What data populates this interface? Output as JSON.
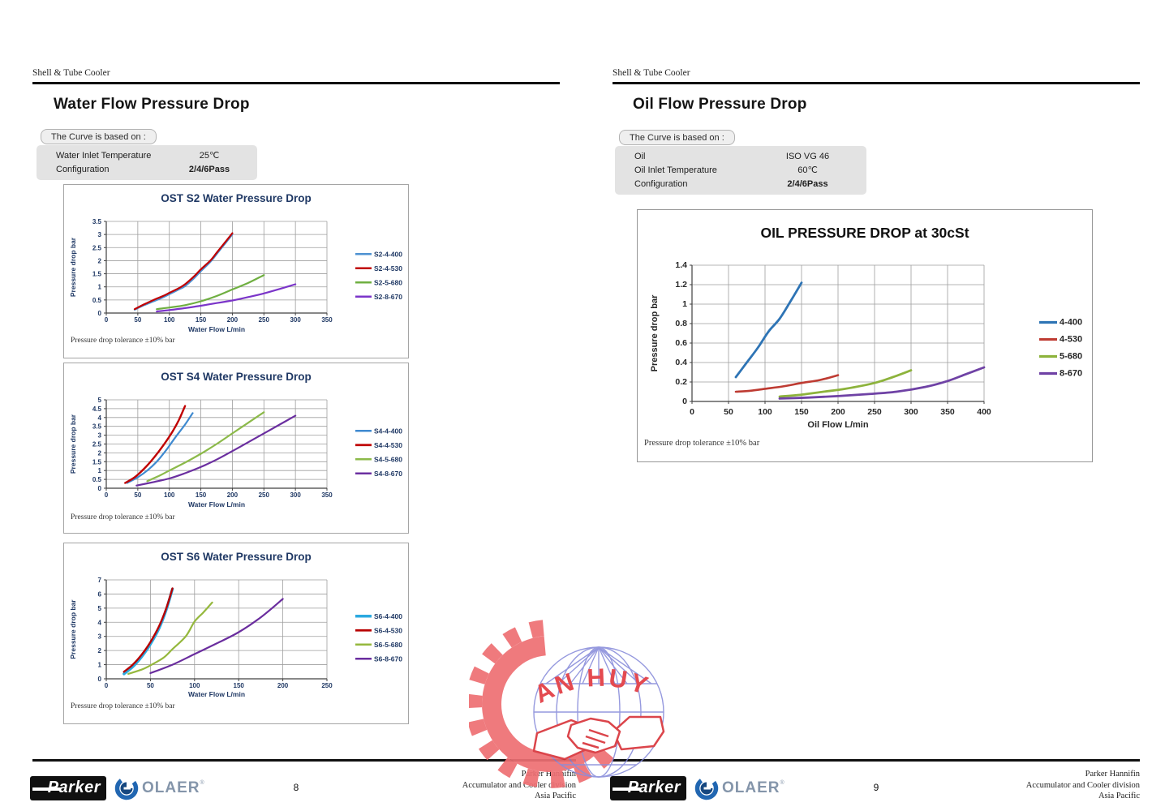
{
  "watermark": {
    "text": "AN HUY"
  },
  "pages": [
    {
      "header": "Shell & Tube Cooler",
      "title": "Water Flow Pressure Drop",
      "curve_box": {
        "tab": "The Curve is based on :",
        "rows": [
          {
            "label": "Water Inlet Temperature",
            "value": "25℃"
          },
          {
            "label": "Configuration",
            "value": "2/4/6Pass"
          }
        ]
      },
      "page_number": "8",
      "footer_lines": [
        "Parker Hannifin",
        "Accumulator and Cooler division",
        "Asia Pacific"
      ],
      "logos": {
        "parker": "Parker",
        "olaer": "OLAER",
        "olaer_reg": "®"
      }
    },
    {
      "header": "Shell & Tube Cooler",
      "title": "Oil Flow Pressure Drop",
      "curve_box": {
        "tab": "The Curve is based on :",
        "rows": [
          {
            "label": "Oil",
            "value": "ISO VG 46"
          },
          {
            "label": "Oil Inlet Temperature",
            "value": "60℃"
          },
          {
            "label": "Configuration",
            "value": "2/4/6Pass"
          }
        ]
      },
      "page_number": "9",
      "footer_lines": [
        "Parker Hannifin",
        "Accumulator and Cooler division",
        "Asia Pacific"
      ],
      "logos": {
        "parker": "Parker",
        "olaer": "OLAER",
        "olaer_reg": "®"
      }
    }
  ],
  "chart_data": [
    {
      "type": "line",
      "title": "OST S2 Water Pressure Drop",
      "xlabel": "Water Flow L/min",
      "ylabel": "Pressure drop bar",
      "note": "Pressure drop tolerance ±10% bar",
      "xlim": [
        0,
        350
      ],
      "ylim": [
        0,
        3.5
      ],
      "xticks": [
        0,
        50,
        100,
        150,
        200,
        250,
        300,
        350
      ],
      "yticks": [
        0,
        0.5,
        1,
        1.5,
        2,
        2.5,
        3,
        3.5
      ],
      "grid": true,
      "legend_position": "right",
      "series": [
        {
          "name": "S2-4-400",
          "color": "#4E92D2",
          "width": 2.2,
          "points": [
            [
              45,
              0.13
            ],
            [
              60,
              0.3
            ],
            [
              75,
              0.45
            ],
            [
              90,
              0.6
            ],
            [
              100,
              0.72
            ],
            [
              115,
              0.9
            ],
            [
              125,
              1.03
            ],
            [
              140,
              1.35
            ],
            [
              150,
              1.6
            ],
            [
              165,
              1.95
            ],
            [
              175,
              2.25
            ],
            [
              190,
              2.7
            ],
            [
              200,
              3.0
            ]
          ]
        },
        {
          "name": "S2-4-530",
          "color": "#C00000",
          "width": 2.2,
          "points": [
            [
              45,
              0.15
            ],
            [
              60,
              0.33
            ],
            [
              75,
              0.5
            ],
            [
              90,
              0.65
            ],
            [
              100,
              0.77
            ],
            [
              115,
              0.95
            ],
            [
              125,
              1.1
            ],
            [
              140,
              1.42
            ],
            [
              150,
              1.67
            ],
            [
              165,
              2.0
            ],
            [
              175,
              2.3
            ],
            [
              190,
              2.75
            ],
            [
              200,
              3.05
            ]
          ]
        },
        {
          "name": "S2-5-680",
          "color": "#6FAF41",
          "width": 2.2,
          "points": [
            [
              80,
              0.15
            ],
            [
              100,
              0.21
            ],
            [
              125,
              0.3
            ],
            [
              150,
              0.45
            ],
            [
              175,
              0.65
            ],
            [
              200,
              0.9
            ],
            [
              225,
              1.15
            ],
            [
              250,
              1.45
            ]
          ]
        },
        {
          "name": "S2-8-670",
          "color": "#7B35C9",
          "width": 2.2,
          "points": [
            [
              80,
              0.06
            ],
            [
              100,
              0.11
            ],
            [
              125,
              0.19
            ],
            [
              150,
              0.28
            ],
            [
              175,
              0.38
            ],
            [
              200,
              0.48
            ],
            [
              225,
              0.61
            ],
            [
              250,
              0.75
            ],
            [
              275,
              0.92
            ],
            [
              300,
              1.1
            ]
          ]
        }
      ]
    },
    {
      "type": "line",
      "title": "OST S4 Water Pressure Drop",
      "xlabel": "Water Flow L/min",
      "ylabel": "Pressure drop bar",
      "note": "Pressure drop tolerance ±10% bar",
      "xlim": [
        0,
        350
      ],
      "ylim": [
        0,
        5
      ],
      "xticks": [
        0,
        50,
        100,
        150,
        200,
        250,
        300,
        350
      ],
      "yticks": [
        0,
        0.5,
        1,
        1.5,
        2,
        2.5,
        3,
        3.5,
        4,
        4.5,
        5
      ],
      "grid": true,
      "legend_position": "right",
      "series": [
        {
          "name": "S4-4-400",
          "color": "#3F8AD0",
          "width": 2.2,
          "points": [
            [
              33,
              0.3
            ],
            [
              50,
              0.62
            ],
            [
              65,
              1.0
            ],
            [
              80,
              1.5
            ],
            [
              95,
              2.15
            ],
            [
              110,
              2.9
            ],
            [
              125,
              3.6
            ],
            [
              137,
              4.25
            ]
          ]
        },
        {
          "name": "S4-4-530",
          "color": "#C00000",
          "width": 2.4,
          "points": [
            [
              30,
              0.3
            ],
            [
              45,
              0.62
            ],
            [
              60,
              1.1
            ],
            [
              75,
              1.7
            ],
            [
              90,
              2.4
            ],
            [
              105,
              3.2
            ],
            [
              115,
              3.85
            ],
            [
              125,
              4.65
            ]
          ]
        },
        {
          "name": "S4-5-680",
          "color": "#8CBA4A",
          "width": 2.2,
          "points": [
            [
              65,
              0.4
            ],
            [
              85,
              0.72
            ],
            [
              100,
              1.0
            ],
            [
              125,
              1.45
            ],
            [
              150,
              1.95
            ],
            [
              175,
              2.5
            ],
            [
              200,
              3.1
            ],
            [
              225,
              3.7
            ],
            [
              250,
              4.3
            ]
          ]
        },
        {
          "name": "S4-8-670",
          "color": "#6B2FA0",
          "width": 2.2,
          "points": [
            [
              48,
              0.15
            ],
            [
              75,
              0.35
            ],
            [
              100,
              0.55
            ],
            [
              125,
              0.85
            ],
            [
              150,
              1.2
            ],
            [
              175,
              1.62
            ],
            [
              200,
              2.1
            ],
            [
              225,
              2.6
            ],
            [
              250,
              3.1
            ],
            [
              275,
              3.6
            ],
            [
              300,
              4.1
            ]
          ]
        }
      ]
    },
    {
      "type": "line",
      "title": "OST S6 Water Pressure Drop",
      "xlabel": "Water Flow L/min",
      "ylabel": "Pressure drop bar",
      "note": "Pressure drop tolerance ±10% bar",
      "xlim": [
        0,
        250
      ],
      "ylim": [
        0,
        7
      ],
      "xticks": [
        0,
        50,
        100,
        150,
        200,
        250
      ],
      "yticks": [
        0,
        1,
        2,
        3,
        4,
        5,
        6,
        7
      ],
      "grid": true,
      "legend_position": "right",
      "series": [
        {
          "name": "S6-4-400",
          "color": "#2BA9E0",
          "width": 3.4,
          "points": [
            [
              20,
              0.35
            ],
            [
              30,
              0.85
            ],
            [
              40,
              1.55
            ],
            [
              50,
              2.45
            ],
            [
              60,
              3.6
            ],
            [
              68,
              4.9
            ],
            [
              75,
              6.35
            ]
          ]
        },
        {
          "name": "S6-4-530",
          "color": "#B80000",
          "width": 2.4,
          "points": [
            [
              20,
              0.5
            ],
            [
              30,
              1.0
            ],
            [
              40,
              1.7
            ],
            [
              50,
              2.6
            ],
            [
              60,
              3.75
            ],
            [
              68,
              5.0
            ],
            [
              75,
              6.4
            ]
          ]
        },
        {
          "name": "S6-5-680",
          "color": "#95B83D",
          "width": 2.2,
          "points": [
            [
              25,
              0.35
            ],
            [
              40,
              0.65
            ],
            [
              50,
              0.95
            ],
            [
              65,
              1.5
            ],
            [
              75,
              2.1
            ],
            [
              90,
              3.0
            ],
            [
              100,
              4.05
            ],
            [
              110,
              4.7
            ],
            [
              120,
              5.4
            ]
          ]
        },
        {
          "name": "S6-8-670",
          "color": "#6A2D9E",
          "width": 2.2,
          "points": [
            [
              50,
              0.4
            ],
            [
              75,
              1.0
            ],
            [
              100,
              1.75
            ],
            [
              125,
              2.5
            ],
            [
              150,
              3.3
            ],
            [
              175,
              4.35
            ],
            [
              200,
              5.65
            ]
          ]
        }
      ]
    },
    {
      "type": "line",
      "title": "OIL PRESSURE DROP at 30cSt",
      "xlabel": "Oil Flow L/min",
      "ylabel": "Pressure drop bar",
      "note": "Pressure drop tolerance ±10% bar",
      "xlim": [
        0,
        400
      ],
      "ylim": [
        0,
        1.4
      ],
      "xticks": [
        0,
        50,
        100,
        150,
        200,
        250,
        300,
        350,
        400
      ],
      "yticks": [
        0,
        0.2,
        0.4,
        0.6,
        0.8,
        1,
        1.2,
        1.4
      ],
      "grid": true,
      "legend_position": "right",
      "series": [
        {
          "name": "4-400",
          "color": "#2E74B5",
          "width": 2.8,
          "points": [
            [
              60,
              0.25
            ],
            [
              75,
              0.4
            ],
            [
              90,
              0.55
            ],
            [
              105,
              0.72
            ],
            [
              120,
              0.85
            ],
            [
              135,
              1.03
            ],
            [
              150,
              1.22
            ]
          ]
        },
        {
          "name": "4-530",
          "color": "#BE3B32",
          "width": 2.6,
          "points": [
            [
              60,
              0.1
            ],
            [
              80,
              0.11
            ],
            [
              100,
              0.13
            ],
            [
              125,
              0.155
            ],
            [
              150,
              0.19
            ],
            [
              175,
              0.22
            ],
            [
              200,
              0.27
            ]
          ]
        },
        {
          "name": "5-680",
          "color": "#8DB33C",
          "width": 2.8,
          "points": [
            [
              120,
              0.05
            ],
            [
              150,
              0.07
            ],
            [
              180,
              0.1
            ],
            [
              210,
              0.13
            ],
            [
              250,
              0.19
            ],
            [
              275,
              0.25
            ],
            [
              300,
              0.32
            ]
          ]
        },
        {
          "name": "8-670",
          "color": "#6F42A5",
          "width": 2.8,
          "points": [
            [
              120,
              0.03
            ],
            [
              160,
              0.04
            ],
            [
              200,
              0.055
            ],
            [
              240,
              0.075
            ],
            [
              280,
              0.1
            ],
            [
              320,
              0.15
            ],
            [
              350,
              0.21
            ],
            [
              375,
              0.28
            ],
            [
              400,
              0.35
            ]
          ]
        }
      ]
    }
  ]
}
